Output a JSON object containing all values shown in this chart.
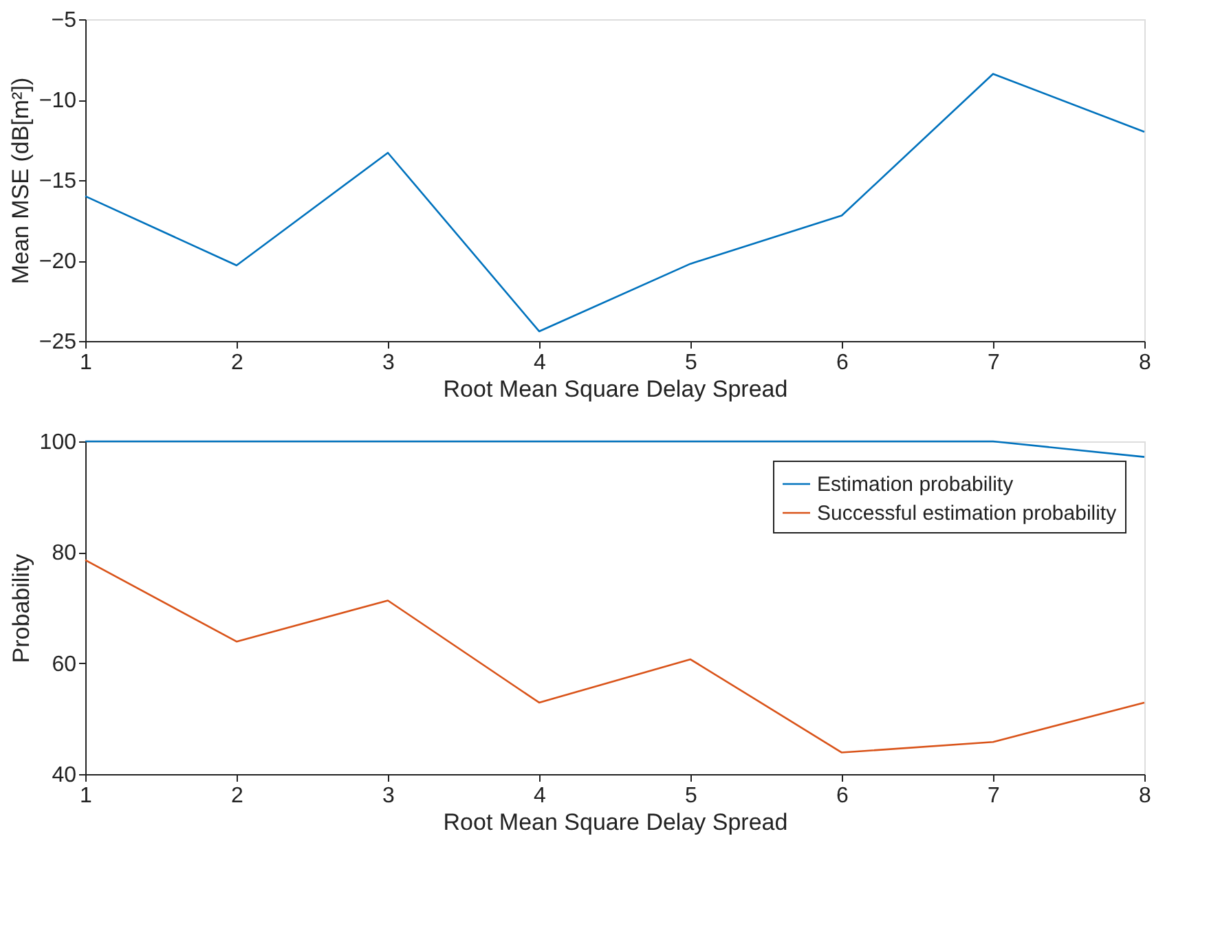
{
  "chart_data": [
    {
      "type": "line",
      "x": [
        1,
        2,
        3,
        4,
        5,
        6,
        7,
        8
      ],
      "xlabel": "Root Mean Square Delay Spread",
      "ylabel": "Mean MSE (dB[m²])",
      "xlim": [
        1,
        8
      ],
      "xticks": [
        1,
        2,
        3,
        4,
        5,
        6,
        7,
        8
      ],
      "ylim": [
        -25,
        -5
      ],
      "yticks": [
        -25,
        -20,
        -15,
        -10,
        -5
      ],
      "grid": false,
      "legend": false,
      "series": [
        {
          "color": "#0072bd",
          "values": [
            -16.0,
            -20.3,
            -13.3,
            -24.4,
            -20.2,
            -17.2,
            -8.4,
            -12.0
          ]
        }
      ]
    },
    {
      "type": "line",
      "x": [
        1,
        2,
        3,
        4,
        5,
        6,
        7,
        8
      ],
      "xlabel": "Root Mean Square Delay Spread",
      "ylabel": "Probability",
      "xlim": [
        1,
        8
      ],
      "xticks": [
        1,
        2,
        3,
        4,
        5,
        6,
        7,
        8
      ],
      "ylim": [
        40,
        100
      ],
      "yticks": [
        40,
        60,
        80,
        100
      ],
      "grid": false,
      "legend": "top right",
      "series": [
        {
          "name": "Estimation probability",
          "color": "#0072bd",
          "values": [
            100,
            100,
            100,
            100,
            100,
            100,
            100,
            97.2
          ]
        },
        {
          "name": "Successful estimation probability",
          "color": "#d95319",
          "values": [
            78.6,
            63.9,
            71.3,
            52.9,
            60.7,
            43.9,
            45.8,
            52.9
          ]
        }
      ]
    }
  ]
}
